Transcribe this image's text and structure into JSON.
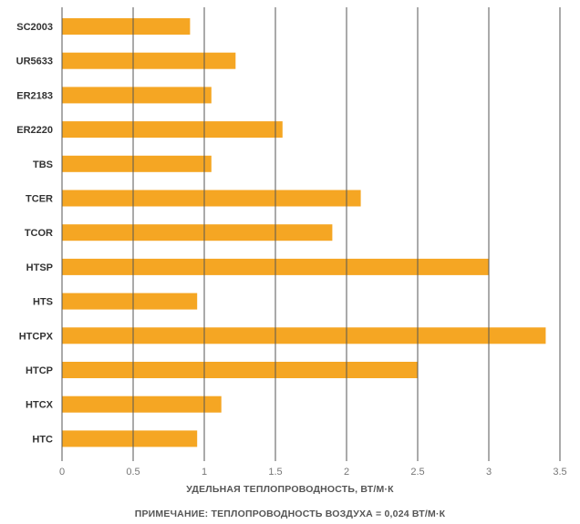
{
  "chart_data": {
    "type": "bar",
    "orientation": "horizontal",
    "categories": [
      "SC2003",
      "UR5633",
      "ER2183",
      "ER2220",
      "TBS",
      "TCER",
      "TCOR",
      "HTSP",
      "HTS",
      "HTCPX",
      "HTCP",
      "HTCX",
      "HTC"
    ],
    "values": [
      0.9,
      1.22,
      1.05,
      1.55,
      1.05,
      2.1,
      1.9,
      3.0,
      0.95,
      3.4,
      2.5,
      1.12,
      0.95
    ],
    "xticks": [
      "0",
      "0.5",
      "1",
      "1.5",
      "2",
      "2.5",
      "3",
      "3.5"
    ],
    "xlim": [
      0,
      3.5
    ],
    "xlabel": "УДЕЛЬНАЯ ТЕПЛОПРОВОДНОСТЬ, ВТ/М·К",
    "ylabel": "",
    "title": "",
    "grid": true,
    "bar_color": "#F5A623",
    "gridline_color": "#555555"
  },
  "note": "ПРИМЕЧАНИЕ: ТЕПЛОПРОВОДНОСТЬ ВОЗДУХА = 0,024 ВТ/М·К"
}
